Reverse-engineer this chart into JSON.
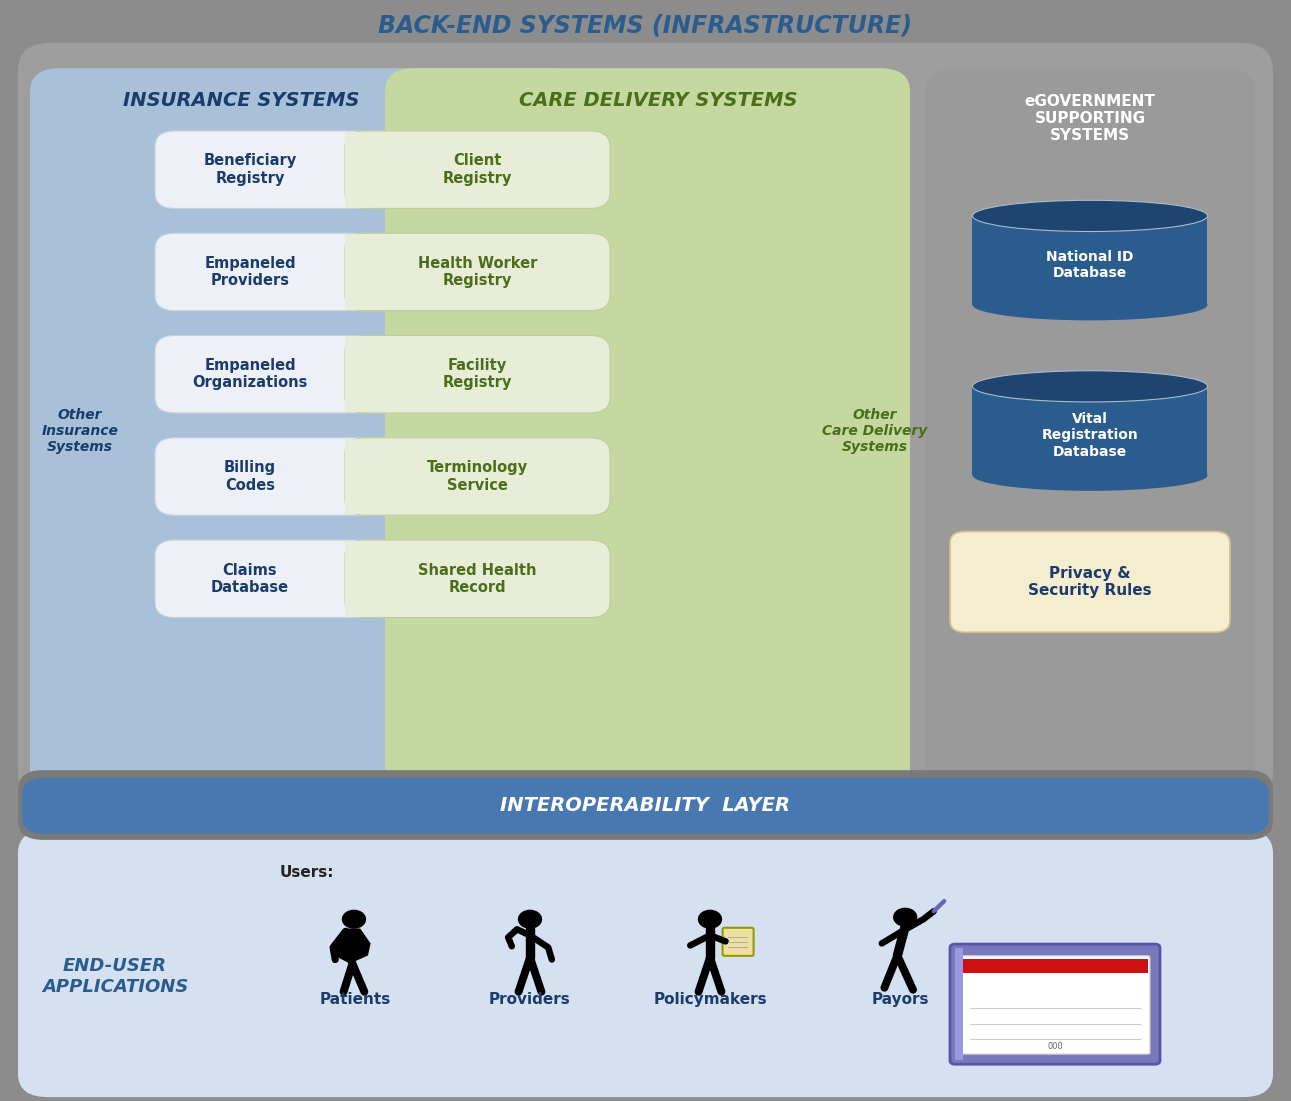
{
  "title": "BACK-END SYSTEMS (INFRASTRUCTURE)",
  "title_color": "#2B5C8E",
  "bg_outer": "#8C8C8C",
  "insurance_bg": "#A8C0D8",
  "insurance_title": "INSURANCE SYSTEMS",
  "insurance_title_color": "#1B3C6B",
  "care_bg": "#C5D8A0",
  "care_title": "CARE DELIVERY SYSTEMS",
  "care_title_color": "#4A6E1A",
  "egovt_bg": "#9A9A9A",
  "egovt_title": "eGOVERNMENT\nSUPPORTING\nSYSTEMS",
  "egovt_title_color": "#FFFFFF",
  "box_left_bg": "#EDF1F7",
  "box_left_edge": "#C8D0DC",
  "box_right_bg": "#E8EDD8",
  "box_right_edge": "#C0CC98",
  "rows": [
    {
      "left": "Beneficiary\nRegistry",
      "right": "Client\nRegistry"
    },
    {
      "left": "Empaneled\nProviders",
      "right": "Health Worker\nRegistry"
    },
    {
      "left": "Empaneled\nOrganizations",
      "right": "Facility\nRegistry"
    },
    {
      "left": "Billing\nCodes",
      "right": "Terminology\nService"
    },
    {
      "left": "Claims\nDatabase",
      "right": "Shared Health\nRecord"
    }
  ],
  "other_insurance": "Other\nInsurance\nSystems",
  "other_care": "Other\nCare Delivery\nSystems",
  "other_ins_color": "#1B3C6B",
  "other_care_color": "#4A6E1A",
  "db1_label": "National ID\nDatabase",
  "db2_label": "Vital\nRegistration\nDatabase",
  "db_color": "#2B5C8E",
  "db_dark": "#1E4470",
  "db_label_color": "#FFFFFF",
  "privacy_label": "Privacy &\nSecurity Rules",
  "privacy_bg": "#F5EDD0",
  "privacy_text_color": "#1B3C6B",
  "interop_bg": "#4878B0",
  "interop_label": "INTEROPERABILITY  LAYER",
  "interop_label_color": "#FFFFFF",
  "enduser_bg": "#D5E0F0",
  "enduser_label": "END-USER\nAPPLICATIONS",
  "enduser_label_color": "#2B5C8E",
  "users_label": "Users:",
  "user_labels": [
    "Patients",
    "Providers",
    "Policymakers",
    "Payors"
  ],
  "user_label_color": "#1B3C6B"
}
